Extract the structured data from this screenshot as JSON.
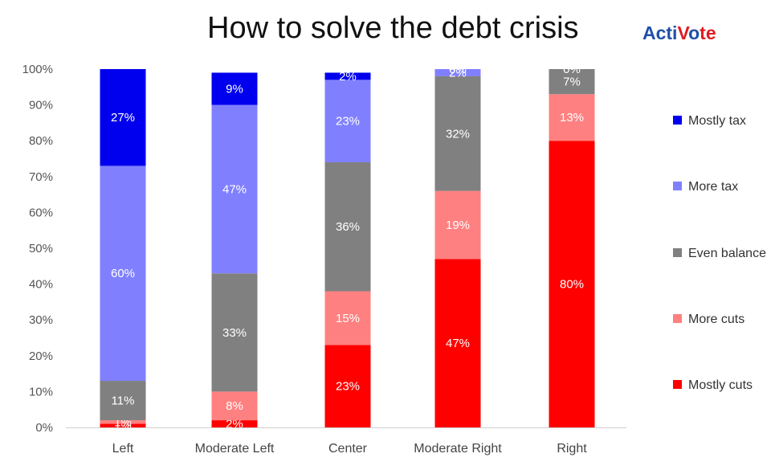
{
  "title": "How to solve the debt crisis",
  "logo": {
    "part1": "Acti",
    "check": "V",
    "part2": "o",
    "part3": "te"
  },
  "colors": {
    "Mostly tax": "#0000ee",
    "More tax": "#8080ff",
    "Even balance": "#808080",
    "More cuts": "#ff8080",
    "Mostly cuts": "#ff0000"
  },
  "chart_data": {
    "type": "bar",
    "stacked": true,
    "categories": [
      "Left",
      "Moderate Left",
      "Center",
      "Moderate Right",
      "Right"
    ],
    "series": [
      {
        "name": "Mostly cuts",
        "values": [
          1,
          2,
          23,
          47,
          80
        ],
        "labels": [
          "1%",
          "2%",
          "23%",
          "47%",
          "80%"
        ]
      },
      {
        "name": "More cuts",
        "values": [
          1,
          8,
          15,
          19,
          13
        ],
        "labels": [
          "1%",
          "8%",
          "15%",
          "19%",
          "13%"
        ]
      },
      {
        "name": "Even balance",
        "values": [
          11,
          33,
          36,
          32,
          7
        ],
        "labels": [
          "11%",
          "33%",
          "36%",
          "32%",
          "7%"
        ]
      },
      {
        "name": "More tax",
        "values": [
          60,
          47,
          23,
          2,
          0
        ],
        "labels": [
          "60%",
          "47%",
          "23%",
          "2%",
          ""
        ]
      },
      {
        "name": "Mostly tax",
        "values": [
          27,
          9,
          2,
          0,
          0
        ],
        "labels": [
          "27%",
          "9%",
          "2%",
          "0%",
          "0%"
        ]
      }
    ],
    "legend_order": [
      "Mostly tax",
      "More tax",
      "Even balance",
      "More cuts",
      "Mostly cuts"
    ],
    "yticks": [
      "0%",
      "10%",
      "20%",
      "30%",
      "40%",
      "50%",
      "60%",
      "70%",
      "80%",
      "90%",
      "100%"
    ],
    "ylim": [
      0,
      100
    ],
    "legend_position": "right",
    "grid": false
  }
}
